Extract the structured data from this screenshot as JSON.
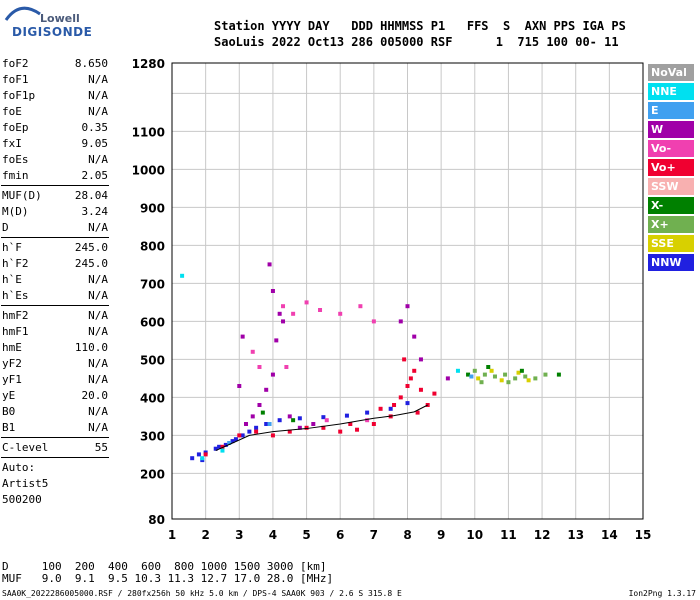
{
  "logo": {
    "line1": "Lowell",
    "line2": "DIGISONDE"
  },
  "header": {
    "line1": "Station YYYY DAY   DDD HHMMSS P1   FFS  S  AXN PPS IGA PS",
    "line2": "SaoLuis 2022 Oct13 286 005000 RSF      1  715 100 00- 11"
  },
  "params": [
    {
      "label": "foF2",
      "value": "8.650"
    },
    {
      "label": "foF1",
      "value": "N/A"
    },
    {
      "label": "foF1p",
      "value": "N/A"
    },
    {
      "label": "foE",
      "value": "N/A"
    },
    {
      "label": "foEp",
      "value": "0.35"
    },
    {
      "label": "fxI",
      "value": "9.05"
    },
    {
      "label": "foEs",
      "value": "N/A"
    },
    {
      "label": "fmin",
      "value": "2.05"
    },
    {
      "label": "MUF(D)",
      "value": "28.04"
    },
    {
      "label": "M(D)",
      "value": "3.24"
    },
    {
      "label": "D",
      "value": "N/A"
    },
    {
      "label": "h`F",
      "value": "245.0"
    },
    {
      "label": "h`F2",
      "value": "245.0"
    },
    {
      "label": "h`E",
      "value": "N/A"
    },
    {
      "label": "h`Es",
      "value": "N/A"
    },
    {
      "label": "hmF2",
      "value": "N/A"
    },
    {
      "label": "hmF1",
      "value": "N/A"
    },
    {
      "label": "hmE",
      "value": "110.0"
    },
    {
      "label": "yF2",
      "value": "N/A"
    },
    {
      "label": "yF1",
      "value": "N/A"
    },
    {
      "label": "yE",
      "value": "20.0"
    },
    {
      "label": "B0",
      "value": "N/A"
    },
    {
      "label": "B1",
      "value": "N/A"
    },
    {
      "label": "C-level",
      "value": "55"
    },
    {
      "label": "Auto:",
      "value": ""
    },
    {
      "label": "Artist5",
      "value": ""
    },
    {
      "label": "500200",
      "value": ""
    }
  ],
  "legend": [
    {
      "label": "NoVal",
      "color": "#a0a0a0"
    },
    {
      "label": "NNE",
      "color": "#00e0f0"
    },
    {
      "label": "E",
      "color": "#40a0f0"
    },
    {
      "label": "W",
      "color": "#a000a8"
    },
    {
      "label": "Vo-",
      "color": "#f040b0"
    },
    {
      "label": "Vo+",
      "color": "#f00030"
    },
    {
      "label": "SSW",
      "color": "#f8b0b0"
    },
    {
      "label": "X-",
      "color": "#008000"
    },
    {
      "label": "X+",
      "color": "#70b050"
    },
    {
      "label": "SSE",
      "color": "#d8d000"
    },
    {
      "label": "NNW",
      "color": "#2020e0"
    }
  ],
  "footer": {
    "line1": "D     100  200  400  600  800 1000 1500 3000 [km]",
    "line2": "MUF   9.0  9.1  9.5 10.3 11.3 12.7 17.0 28.0 [MHz]",
    "line3": "SAA0K_2022286005000.RSF / 280fx256h 50 kHz 5.0 km / DPS-4 SAA0K 903 / 2.6 S 315.8 E",
    "version": "Ion2Png 1.3.17"
  },
  "chart_data": {
    "type": "scatter",
    "xlim": [
      1,
      15
    ],
    "ylim": [
      80,
      1280
    ],
    "x_ticks": [
      1,
      2,
      3,
      4,
      5,
      6,
      7,
      8,
      9,
      10,
      11,
      12,
      13,
      14,
      15
    ],
    "y_ticks": [
      80,
      200,
      300,
      400,
      500,
      600,
      700,
      800,
      900,
      1000,
      1100,
      1280
    ],
    "x_grid_lines": [
      1,
      2,
      3,
      4,
      5,
      6,
      7,
      8,
      9,
      10,
      11,
      12,
      13,
      14,
      15
    ],
    "y_grid_lines": [
      80,
      200,
      300,
      400,
      500,
      600,
      700,
      800,
      900,
      1000,
      1100,
      1200,
      1280
    ],
    "xlabel": "",
    "ylabel": "",
    "series": [
      {
        "name": "NNW",
        "color": "#2020e0",
        "points": [
          [
            1.6,
            240
          ],
          [
            1.8,
            250
          ],
          [
            2.0,
            255
          ],
          [
            2.3,
            265
          ],
          [
            2.6,
            275
          ],
          [
            2.9,
            290
          ],
          [
            3.1,
            300
          ],
          [
            3.3,
            310
          ],
          [
            3.5,
            320
          ],
          [
            3.8,
            330
          ],
          [
            4.2,
            340
          ],
          [
            4.8,
            345
          ],
          [
            5.5,
            348
          ],
          [
            6.2,
            352
          ],
          [
            6.8,
            360
          ],
          [
            7.5,
            370
          ],
          [
            8.0,
            385
          ],
          [
            1.9,
            235
          ],
          [
            2.4,
            270
          ],
          [
            2.8,
            285
          ]
        ]
      },
      {
        "name": "W",
        "color": "#a000a8",
        "points": [
          [
            3.2,
            330
          ],
          [
            3.4,
            350
          ],
          [
            3.6,
            380
          ],
          [
            3.8,
            420
          ],
          [
            4.0,
            460
          ],
          [
            4.1,
            550
          ],
          [
            4.2,
            620
          ],
          [
            4.0,
            680
          ],
          [
            3.9,
            750
          ],
          [
            4.3,
            600
          ],
          [
            4.5,
            350
          ],
          [
            4.8,
            320
          ],
          [
            5.2,
            330
          ],
          [
            7.8,
            600
          ],
          [
            8.0,
            640
          ],
          [
            8.2,
            560
          ],
          [
            8.4,
            500
          ],
          [
            9.2,
            450
          ],
          [
            3.1,
            560
          ],
          [
            3.0,
            430
          ]
        ]
      },
      {
        "name": "Vo+",
        "color": "#f00030",
        "points": [
          [
            2.0,
            250
          ],
          [
            2.5,
            270
          ],
          [
            3.0,
            300
          ],
          [
            3.5,
            310
          ],
          [
            4.0,
            300
          ],
          [
            4.5,
            310
          ],
          [
            5.0,
            320
          ],
          [
            5.5,
            320
          ],
          [
            6.0,
            310
          ],
          [
            6.5,
            315
          ],
          [
            7.0,
            330
          ],
          [
            7.5,
            350
          ],
          [
            7.8,
            400
          ],
          [
            8.0,
            430
          ],
          [
            8.2,
            470
          ],
          [
            8.4,
            420
          ],
          [
            8.6,
            380
          ],
          [
            7.6,
            380
          ],
          [
            7.2,
            370
          ],
          [
            8.8,
            410
          ],
          [
            7.9,
            500
          ],
          [
            8.1,
            450
          ],
          [
            8.3,
            360
          ],
          [
            6.3,
            330
          ]
        ]
      },
      {
        "name": "Vo-",
        "color": "#f040b0",
        "points": [
          [
            4.3,
            640
          ],
          [
            4.6,
            620
          ],
          [
            5.0,
            650
          ],
          [
            5.4,
            630
          ],
          [
            6.0,
            620
          ],
          [
            6.6,
            640
          ],
          [
            7.0,
            600
          ],
          [
            3.4,
            520
          ],
          [
            3.6,
            480
          ],
          [
            4.4,
            480
          ],
          [
            5.6,
            340
          ],
          [
            6.8,
            340
          ]
        ]
      },
      {
        "name": "X+",
        "color": "#70b050",
        "points": [
          [
            10.0,
            470
          ],
          [
            10.3,
            460
          ],
          [
            10.6,
            455
          ],
          [
            10.9,
            460
          ],
          [
            11.2,
            450
          ],
          [
            11.5,
            455
          ],
          [
            11.8,
            450
          ],
          [
            12.1,
            460
          ],
          [
            10.2,
            440
          ],
          [
            11.0,
            440
          ]
        ]
      },
      {
        "name": "SSE",
        "color": "#d8d000",
        "points": [
          [
            10.1,
            450
          ],
          [
            10.5,
            470
          ],
          [
            10.8,
            445
          ],
          [
            11.3,
            465
          ],
          [
            11.6,
            445
          ]
        ]
      },
      {
        "name": "X-",
        "color": "#008000",
        "points": [
          [
            9.8,
            460
          ],
          [
            10.4,
            480
          ],
          [
            11.4,
            470
          ],
          [
            12.5,
            460
          ],
          [
            3.7,
            360
          ],
          [
            4.6,
            340
          ]
        ]
      },
      {
        "name": "NNE",
        "color": "#00e0f0",
        "points": [
          [
            1.3,
            720
          ],
          [
            1.9,
            240
          ],
          [
            2.5,
            260
          ],
          [
            9.5,
            470
          ]
        ]
      },
      {
        "name": "E",
        "color": "#40a0f0",
        "points": [
          [
            2.7,
            280
          ],
          [
            3.9,
            330
          ],
          [
            9.9,
            455
          ]
        ]
      }
    ],
    "trace": {
      "name": "",
      "color": "#000000",
      "points": [
        [
          2.3,
          260
        ],
        [
          2.8,
          280
        ],
        [
          3.3,
          300
        ],
        [
          4.0,
          310
        ],
        [
          5.0,
          318
        ],
        [
          6.0,
          330
        ],
        [
          7.0,
          345
        ],
        [
          7.6,
          352
        ],
        [
          8.2,
          362
        ],
        [
          8.6,
          380
        ]
      ]
    }
  }
}
